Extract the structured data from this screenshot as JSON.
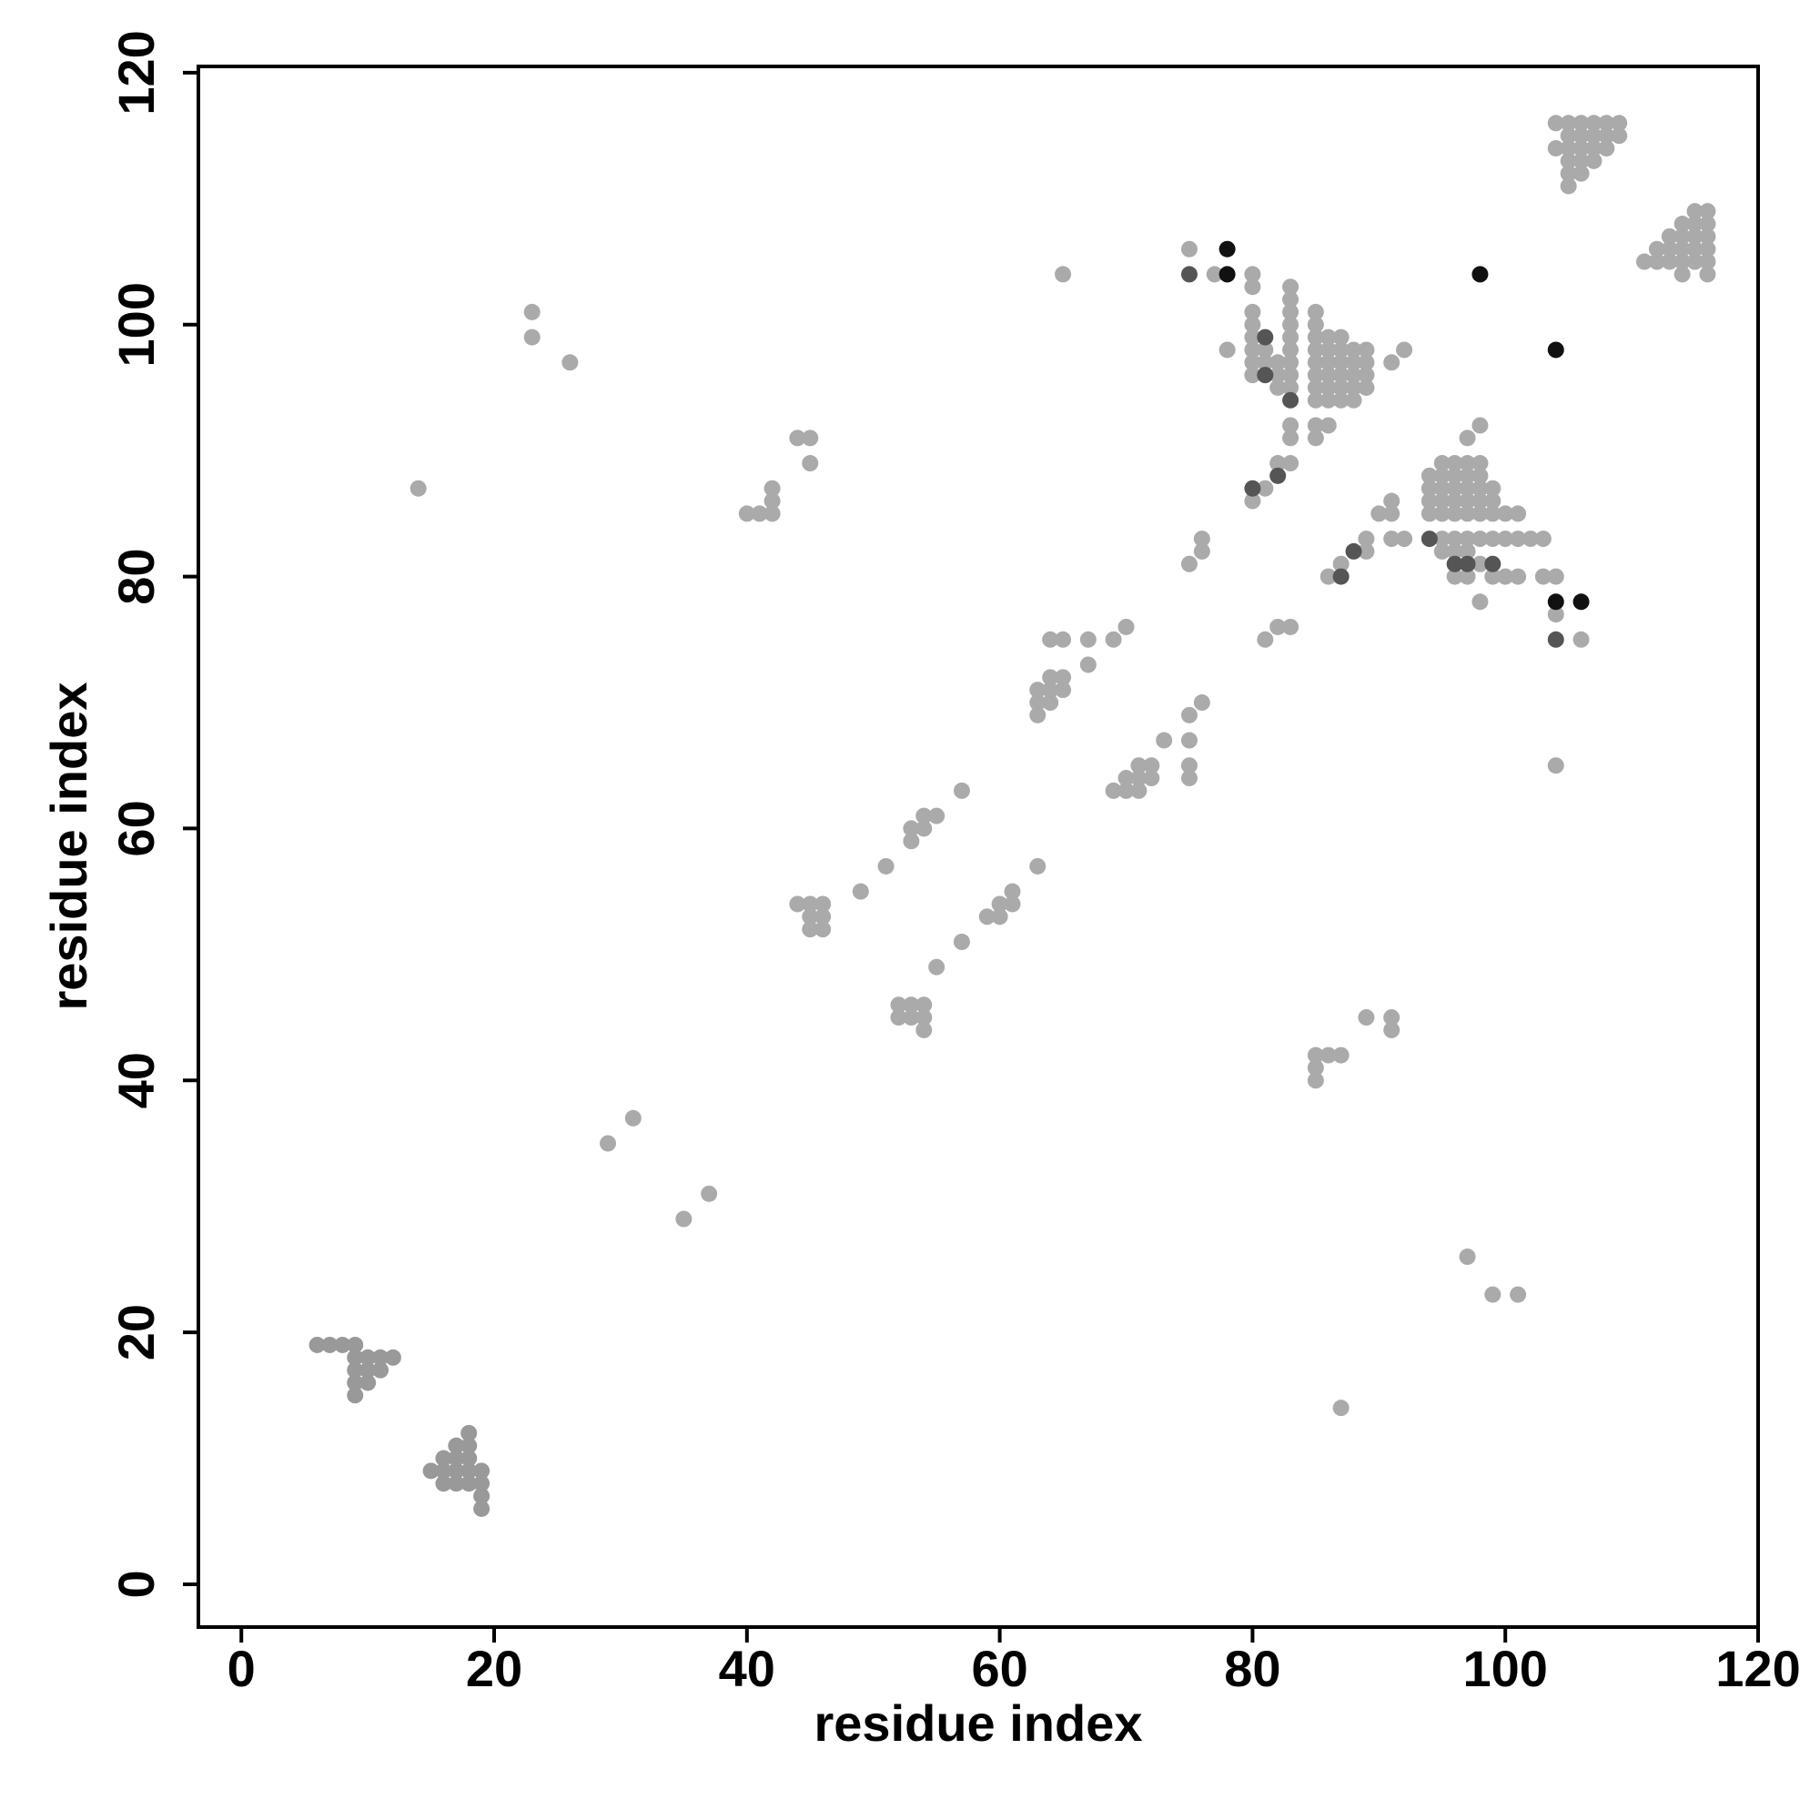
{
  "chart_data": {
    "type": "scatter",
    "xlabel": "residue index",
    "ylabel": "residue index",
    "xlim": [
      -3.4,
      120
    ],
    "ylim": [
      -3.4,
      120.5
    ],
    "xticks": [
      0,
      20,
      40,
      60,
      80,
      100,
      120
    ],
    "yticks": [
      0,
      20,
      40,
      60,
      80,
      100,
      120
    ],
    "series": [
      {
        "color": "#aaaaaa",
        "x": [
          14,
          23,
          23,
          26,
          29,
          31,
          35,
          37,
          40,
          41,
          42,
          42,
          42,
          44,
          45,
          45,
          44,
          45,
          46,
          45,
          46,
          45,
          46,
          49,
          51,
          53,
          53,
          54,
          54,
          55,
          57,
          52,
          53,
          54,
          52,
          53,
          54,
          54,
          55,
          57,
          59,
          60,
          60,
          61,
          61,
          63,
          63,
          63,
          63,
          64,
          64,
          64,
          65,
          65,
          64,
          65,
          67,
          67,
          69,
          70,
          69,
          70,
          71,
          70,
          71,
          72,
          71,
          72,
          73,
          75,
          75,
          75,
          75,
          76,
          75,
          76,
          76,
          65,
          75,
          77,
          78,
          80,
          80,
          80,
          80,
          80,
          80,
          80,
          80,
          81,
          81,
          82,
          82,
          82,
          83,
          83,
          83,
          83,
          83,
          83,
          83,
          83,
          83,
          83,
          83,
          83,
          82,
          80,
          81,
          81,
          82,
          83,
          85,
          85,
          85,
          85,
          85,
          85,
          85,
          85,
          86,
          86,
          86,
          86,
          86,
          86,
          87,
          87,
          87,
          87,
          87,
          87,
          88,
          88,
          88,
          88,
          88,
          89,
          89,
          89,
          89,
          85,
          85,
          86,
          91,
          92,
          86,
          87,
          89,
          89,
          90,
          91,
          91,
          91,
          92,
          94,
          94,
          94,
          94,
          95,
          95,
          95,
          95,
          95,
          96,
          96,
          96,
          96,
          96,
          97,
          97,
          97,
          97,
          97,
          98,
          98,
          98,
          98,
          98,
          99,
          99,
          99,
          100,
          101,
          98,
          97,
          95,
          96,
          97,
          98,
          99,
          100,
          101,
          102,
          103,
          95,
          96,
          97,
          98,
          99,
          100,
          101,
          96,
          97,
          98,
          103,
          104,
          104,
          106,
          104,
          85,
          86,
          87,
          85,
          85,
          89,
          91,
          91,
          97,
          99,
          101,
          87,
          104,
          105,
          106,
          107,
          108,
          109,
          104,
          105,
          106,
          107,
          108,
          109,
          105,
          106,
          107,
          108,
          105,
          106,
          107,
          105,
          106,
          105,
          111,
          112,
          113,
          112,
          113,
          114,
          113,
          114,
          115,
          114,
          115,
          116,
          115,
          116,
          114,
          115,
          116,
          114,
          116,
          116,
          116,
          115
        ],
        "y": [
          87,
          101,
          99,
          97,
          35,
          37,
          29,
          31,
          85,
          85,
          85,
          86,
          87,
          91,
          91,
          89,
          54,
          54,
          54,
          53,
          53,
          52,
          52,
          55,
          57,
          59,
          60,
          60,
          61,
          61,
          63,
          46,
          46,
          46,
          45,
          45,
          45,
          44,
          49,
          51,
          53,
          53,
          54,
          54,
          55,
          57,
          69,
          70,
          71,
          70,
          71,
          72,
          71,
          72,
          75,
          75,
          75,
          73,
          75,
          76,
          63,
          63,
          63,
          64,
          64,
          64,
          65,
          65,
          67,
          64,
          65,
          67,
          69,
          70,
          81,
          82,
          83,
          104,
          106,
          104,
          98,
          104,
          103,
          101,
          100,
          99,
          98,
          97,
          96,
          98,
          97,
          97,
          96,
          95,
          96,
          95,
          97,
          98,
          99,
          100,
          101,
          102,
          103,
          92,
          91,
          89,
          89,
          86,
          87,
          75,
          76,
          76,
          101,
          100,
          99,
          98,
          97,
          96,
          95,
          94,
          99,
          98,
          97,
          96,
          95,
          94,
          99,
          98,
          97,
          96,
          95,
          94,
          98,
          97,
          96,
          95,
          94,
          98,
          97,
          96,
          95,
          92,
          91,
          92,
          97,
          98,
          80,
          81,
          82,
          83,
          85,
          85,
          86,
          83,
          83,
          88,
          87,
          86,
          85,
          89,
          88,
          87,
          86,
          85,
          89,
          88,
          87,
          86,
          85,
          89,
          88,
          87,
          86,
          85,
          89,
          88,
          87,
          86,
          85,
          87,
          86,
          85,
          85,
          85,
          92,
          91,
          83,
          83,
          83,
          83,
          83,
          83,
          83,
          83,
          83,
          82,
          82,
          82,
          81,
          80,
          80,
          80,
          80,
          80,
          78,
          80,
          80,
          77,
          75,
          65,
          42,
          42,
          42,
          41,
          40,
          45,
          45,
          44,
          26,
          23,
          23,
          14,
          116,
          116,
          116,
          116,
          116,
          116,
          114,
          115,
          115,
          115,
          115,
          115,
          114,
          114,
          114,
          114,
          113,
          113,
          113,
          112,
          112,
          111,
          105,
          105,
          105,
          106,
          106,
          106,
          107,
          107,
          107,
          108,
          108,
          108,
          109,
          109,
          105,
          105,
          105,
          104,
          104,
          106,
          107,
          106
        ]
      },
      {
        "color": "#999999",
        "x": [
          6,
          7,
          8,
          9,
          9,
          10,
          11,
          12,
          9,
          10,
          11,
          9,
          10,
          9,
          15,
          16,
          16,
          17,
          17,
          18,
          18,
          18,
          18,
          17,
          17,
          18,
          19,
          19,
          19,
          19,
          16
        ],
        "y": [
          19,
          19,
          19,
          19,
          18,
          18,
          18,
          18,
          17,
          17,
          17,
          16,
          16,
          15,
          9,
          9,
          10,
          10,
          9,
          9,
          10,
          11,
          12,
          11,
          8,
          8,
          8,
          9,
          7,
          6,
          8
        ]
      },
      {
        "color": "#555555",
        "x": [
          75,
          81,
          81,
          83,
          80,
          82,
          87,
          88,
          94,
          96,
          97,
          99,
          104
        ],
        "y": [
          104,
          99,
          96,
          94,
          87,
          88,
          80,
          82,
          83,
          81,
          81,
          81,
          75
        ]
      },
      {
        "color": "#111111",
        "x": [
          78,
          78,
          98,
          104,
          104,
          106
        ],
        "y": [
          106,
          104,
          104,
          98,
          78,
          78
        ]
      }
    ]
  }
}
